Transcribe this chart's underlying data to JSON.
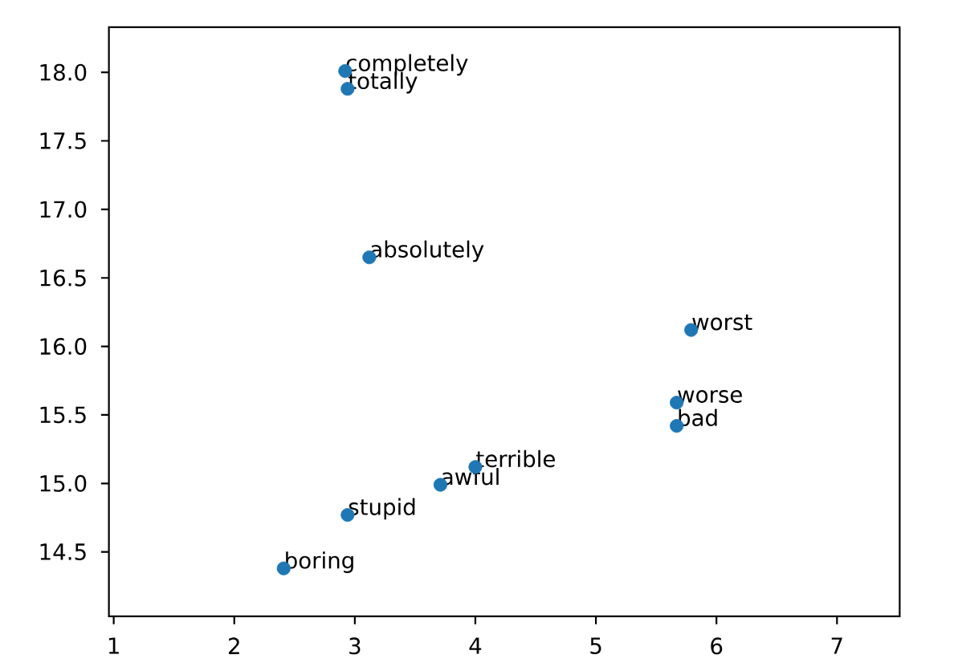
{
  "chart_data": {
    "type": "scatter",
    "x": [
      2.92,
      2.94,
      3.12,
      5.79,
      5.67,
      5.67,
      4.0,
      3.71,
      2.94,
      2.41
    ],
    "values": [
      18.01,
      17.88,
      16.65,
      16.12,
      15.59,
      15.42,
      15.12,
      14.99,
      14.77,
      14.38
    ],
    "color": "#1f77b4",
    "marker": "circle",
    "xlim": [
      0.96,
      7.52
    ],
    "ylim": [
      14.03,
      18.33
    ],
    "xticks": [
      1,
      2,
      3,
      4,
      5,
      6,
      7
    ],
    "yticks": [
      14.5,
      {
        "value": 15,
        "label": "15.0"
      },
      15.5,
      {
        "value": 16,
        "label": "16.0"
      },
      16.5,
      {
        "value": 17,
        "label": "17.0"
      },
      17.5,
      {
        "value": 18,
        "label": "18.0"
      }
    ],
    "annotations": [
      {
        "text": "completely",
        "x": 2.92,
        "y": 18.01
      },
      {
        "text": "totally",
        "x": 2.94,
        "y": 17.88
      },
      {
        "text": "absolutely",
        "x": 3.12,
        "y": 16.65
      },
      {
        "text": "worst",
        "x": 5.79,
        "y": 16.12
      },
      {
        "text": "worse",
        "x": 5.67,
        "y": 15.59
      },
      {
        "text": "bad",
        "x": 5.67,
        "y": 15.42
      },
      {
        "text": "terrible",
        "x": 4.0,
        "y": 15.12
      },
      {
        "text": "awful",
        "x": 3.71,
        "y": 14.99
      },
      {
        "text": "stupid",
        "x": 2.94,
        "y": 14.77
      },
      {
        "text": "boring",
        "x": 2.41,
        "y": 14.38
      }
    ]
  }
}
